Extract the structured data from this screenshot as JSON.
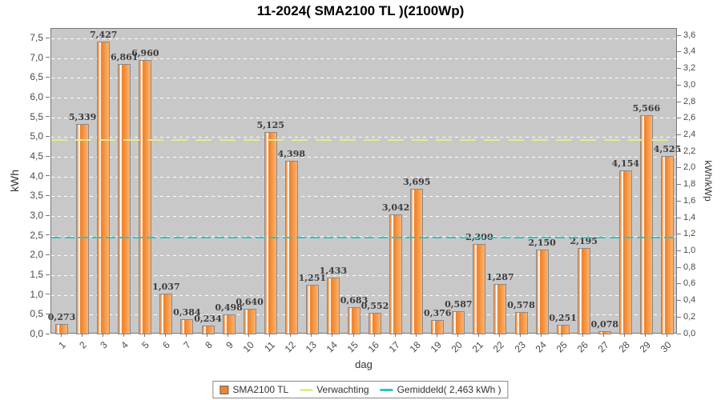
{
  "title": "11-2024( SMA2100 TL )(2100Wp)",
  "axes": {
    "left_label": "kWh",
    "right_label": "kWh/kWp",
    "x_label": "dag"
  },
  "chart_data": {
    "type": "bar",
    "title": "11-2024( SMA2100 TL )(2100Wp)",
    "xlabel": "dag",
    "ylabel": "kWh",
    "y2label": "kWh/kWp",
    "categories": [
      "1",
      "2",
      "3",
      "4",
      "5",
      "6",
      "7",
      "8",
      "9",
      "10",
      "11",
      "12",
      "13",
      "14",
      "15",
      "16",
      "17",
      "18",
      "19",
      "20",
      "21",
      "22",
      "23",
      "24",
      "25",
      "26",
      "27",
      "28",
      "29",
      "30"
    ],
    "series": [
      {
        "name": "SMA2100 TL",
        "values": [
          0.273,
          5.339,
          7.427,
          6.861,
          6.96,
          1.037,
          0.384,
          0.234,
          0.498,
          0.64,
          5.125,
          4.398,
          1.251,
          1.433,
          0.683,
          0.552,
          3.042,
          3.695,
          0.376,
          0.587,
          2.3,
          1.287,
          0.578,
          2.15,
          0.251,
          2.195,
          0.078,
          4.154,
          5.566,
          4.525
        ],
        "value_labels": [
          "0,273",
          "5,339",
          "7,427",
          "6,861",
          "6,960",
          "1,037",
          "0,384",
          "0,234",
          "0,498",
          "0,640",
          "5,125",
          "4,398",
          "1,251",
          "1,433",
          "0,683",
          "0,552",
          "3,042",
          "3,695",
          "0,376",
          "0,587",
          "2,300",
          "1,287",
          "0,578",
          "2,150",
          "0,251",
          "2,195",
          "0,078",
          "4,154",
          "5,566",
          "4,525"
        ]
      }
    ],
    "reference_lines": [
      {
        "name": "Verwachting",
        "value_kwh": 4.93,
        "color": "#e9e98c",
        "style": "dashed"
      },
      {
        "name": "Gemiddeld",
        "value_kwh": 2.463,
        "color": "#2bc7c3",
        "style": "dashed",
        "label": "Gemiddeld( 2,463 kWh )"
      }
    ],
    "left_axis": {
      "min": 0.0,
      "max": 7.745,
      "tick_step": 0.5,
      "tick_labels": [
        "0,0",
        "0,5",
        "1,0",
        "1,5",
        "2,0",
        "2,5",
        "3,0",
        "3,5",
        "4,0",
        "4,5",
        "5,0",
        "5,5",
        "6,0",
        "6,5",
        "7,0",
        "7,5"
      ]
    },
    "right_axis": {
      "tick_step": 0.2,
      "kwp_factor": 2.1,
      "tick_labels": [
        "0,0",
        "0,2",
        "0,4",
        "0,6",
        "0,8",
        "1,0",
        "1,2",
        "1,4",
        "1,6",
        "1,8",
        "2,0",
        "2,2",
        "2,4",
        "2,6",
        "2,8",
        "3,0",
        "3,2",
        "3,4",
        "3,6"
      ]
    },
    "grid": true,
    "legend_position": "bottom"
  },
  "legend": {
    "items": [
      {
        "label": "SMA2100 TL",
        "swatch": "square",
        "color": "#f08432"
      },
      {
        "label": "Verwachting",
        "swatch": "line",
        "color": "#e9e98c"
      },
      {
        "label": "Gemiddeld( 2,463 kWh )",
        "swatch": "line",
        "color": "#2bc7c3"
      }
    ]
  },
  "colors": {
    "plot_background": "#c8c8c8",
    "grid": "#ffffff",
    "bar_main": "#f5913c",
    "bar_light": "#fbb475",
    "verwachting": "#e9e98c",
    "gemiddeld": "#2bc7c3"
  }
}
